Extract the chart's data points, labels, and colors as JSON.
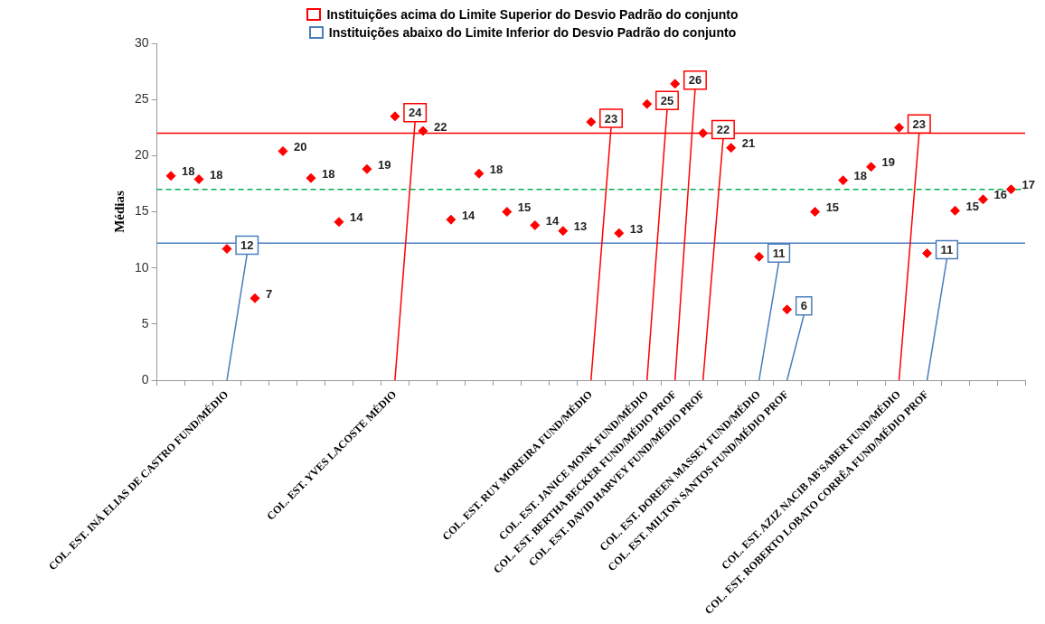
{
  "chart_data": {
    "type": "scatter",
    "ylabel": "Médias",
    "categories": [
      null,
      null,
      "COL. EST. INÁ ELIAS DE CASTRO FUND/MÉDIO",
      null,
      null,
      null,
      null,
      null,
      "COL. EST. YVES LACOSTE MÉDIO",
      null,
      null,
      null,
      null,
      null,
      null,
      "COL. EST. RUY MOREIRA FUND/MÉDIO",
      null,
      "COL. EST. JANICE MONK FUND/MÉDIO",
      "COL. EST. BERTHA BECKER FUND/MÉDIO PROF",
      "COL. EST. DAVID HARVEY FUND/MÉDIO PROF",
      null,
      "COL. EST. DOREEN MASSEY FUND/MÉDIO",
      "COL. EST. MILTON SANTOS FUND/MÉDIO PROF",
      null,
      null,
      null,
      "COL. EST. AZIZ NACIB AB'SABER FUND/MÉDIO",
      "COL. EST. ROBERTO LOBATO CORRÊA FUND/MÉDIO PROF",
      null,
      null,
      null
    ],
    "series": [
      {
        "color": "#ff0000",
        "values": [
          18.2,
          17.9,
          null,
          7.3,
          20.4,
          18.0,
          14.1,
          18.8,
          null,
          22.2,
          14.3,
          18.4,
          15.0,
          13.8,
          13.3,
          null,
          13.1,
          null,
          null,
          null,
          20.7,
          null,
          null,
          15.0,
          17.8,
          19.0,
          null,
          null,
          15.1,
          16.1,
          17.0
        ],
        "value_labels": [
          "18",
          "18",
          null,
          "7",
          "20",
          "18",
          "14",
          "19",
          null,
          "22",
          "14",
          "18",
          "15",
          "14",
          "13",
          null,
          "13",
          null,
          null,
          null,
          "21",
          null,
          null,
          "15",
          "18",
          "19",
          null,
          null,
          "15",
          "16",
          "17"
        ]
      },
      {
        "color": "#ff0000",
        "colors": [
          "#ff0000",
          "#ff0000",
          "#ff0000",
          "#ff0000",
          "#ff0000",
          "#ff0000",
          "#ff0000",
          "#ff0000",
          "#ff0000",
          "#ff0000",
          "#ff0000",
          "#ff0000",
          "#ff0000",
          "#ff0000",
          "#ff0000",
          "#ff0000",
          "#ff0000",
          "#ff0000",
          "#ff0000",
          "#ff0000",
          "#ff0000",
          "#ff0000",
          "#ff0000",
          "#ff0000",
          "#ff0000",
          "#ff0000",
          "#ff0000",
          "#ff0000",
          "#ff0000",
          "#ff0000",
          "#ff0000"
        ],
        "values": [
          null,
          null,
          null,
          null,
          null,
          null,
          null,
          null,
          23.5,
          null,
          null,
          null,
          null,
          null,
          null,
          23.0,
          null,
          24.6,
          26.4,
          22.0,
          null,
          null,
          null,
          null,
          null,
          null,
          22.5,
          null,
          null,
          null,
          null
        ],
        "value_labels": [
          null,
          null,
          null,
          null,
          null,
          null,
          null,
          null,
          "24",
          null,
          null,
          null,
          null,
          null,
          null,
          "23",
          null,
          "25",
          "26",
          "22",
          null,
          null,
          null,
          null,
          null,
          null,
          "23",
          null,
          null,
          null,
          null
        ]
      },
      {
        "color": "#4a7ebb",
        "colors": [
          "#ff0000",
          "#ff0000",
          "#ff0000",
          "#ff0000",
          "#ff0000",
          "#ff0000",
          "#ff0000",
          "#ff0000",
          "#ff0000",
          "#ff0000",
          "#ff0000",
          "#ff0000",
          "#ff0000",
          "#ff0000",
          "#ff0000",
          "#ff0000",
          "#ff0000",
          "#ff0000",
          "#ff0000",
          "#ff0000",
          "#ff0000",
          "#ff0000",
          "#ff0000",
          "#ff0000",
          "#ff0000",
          "#ff0000",
          "#ff0000",
          "#ff0000",
          "#ff0000",
          "#ff0000",
          "#ff0000"
        ],
        "values": [
          null,
          null,
          11.7,
          null,
          null,
          null,
          null,
          null,
          null,
          null,
          null,
          null,
          null,
          null,
          null,
          null,
          null,
          null,
          null,
          null,
          null,
          11.0,
          6.3,
          null,
          null,
          null,
          null,
          11.3,
          null,
          null,
          null
        ],
        "value_labels": [
          null,
          null,
          "12",
          null,
          null,
          null,
          null,
          null,
          null,
          null,
          null,
          null,
          null,
          null,
          null,
          null,
          null,
          null,
          null,
          null,
          null,
          "11",
          "6",
          null,
          null,
          null,
          null,
          "11",
          null,
          null,
          null
        ]
      }
    ],
    "ylim": [
      0,
      30
    ],
    "yticks": [
      0,
      5,
      10,
      15,
      20,
      25,
      30
    ],
    "ref_lines": [
      {
        "axis": "y",
        "value": 22.0,
        "color": "#ff0000"
      },
      {
        "axis": "y",
        "value": 17.0,
        "color": "#00b050",
        "line_style": "dashed"
      },
      {
        "axis": "y",
        "value": 12.2,
        "color": "#4a7ebb"
      }
    ],
    "annotations": [
      "Instituições acima do Limite Superior do Desvio Padrão do conjunto",
      "Instituições abaixo do Limite Inferior do Desvio Padrão do conjunto"
    ],
    "grid": false,
    "marker": "diamond"
  }
}
